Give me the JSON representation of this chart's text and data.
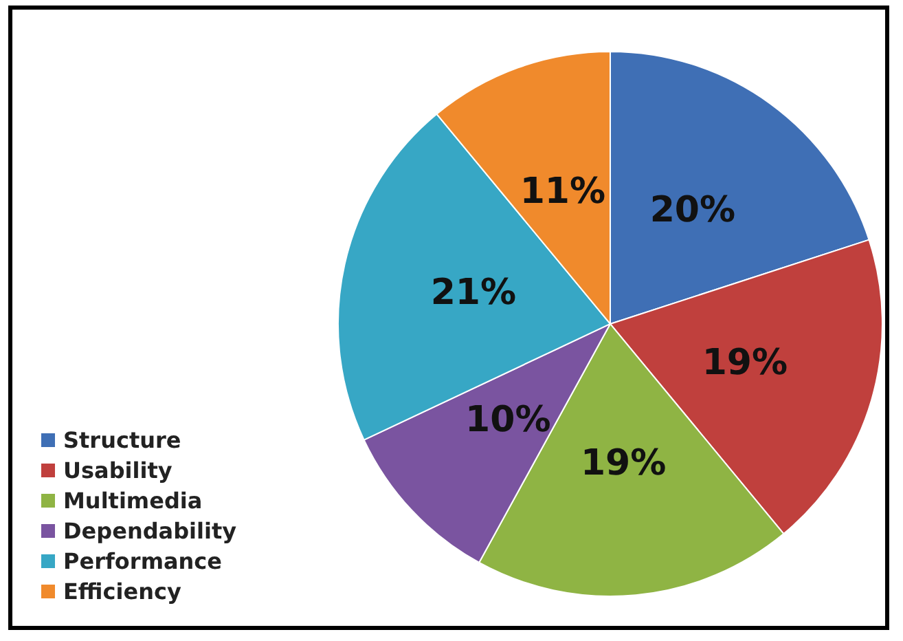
{
  "chart_data": {
    "type": "pie",
    "categories": [
      "Structure",
      "Usability",
      "Multimedia",
      "Dependability",
      "Performance",
      "Efficiency"
    ],
    "values": [
      20,
      19,
      19,
      10,
      21,
      11
    ],
    "value_labels": [
      "20%",
      "19%",
      "19%",
      "10%",
      "21%",
      "11%"
    ],
    "colors": [
      "#3f6fb5",
      "#c0403d",
      "#8fb444",
      "#7a54a0",
      "#37a7c5",
      "#f08a2c"
    ],
    "legend": "bottom left"
  }
}
